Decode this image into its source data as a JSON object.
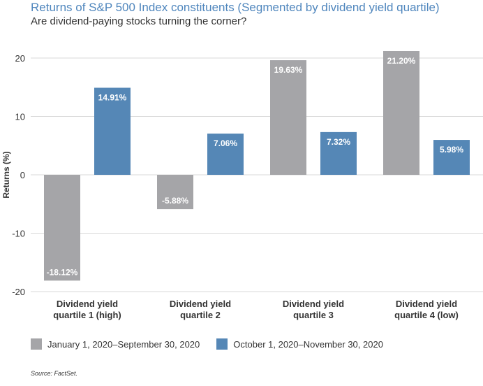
{
  "header": {
    "title": "Returns of S&P 500 Index constituents (Segmented by dividend yield quartile)",
    "subtitle": "Are dividend-paying stocks turning the corner?"
  },
  "source": "Source: FactSet.",
  "chart_data": {
    "type": "bar",
    "ylabel": "Returns (%)",
    "ylim": [
      -20,
      23
    ],
    "yticks": [
      -20,
      -10,
      0,
      10,
      20
    ],
    "grid": true,
    "legend_position": "bottom-left",
    "categories": [
      [
        "Dividend yield",
        "quartile 1 (high)"
      ],
      [
        "Dividend yield",
        "quartile 2"
      ],
      [
        "Dividend yield",
        "quartile 3"
      ],
      [
        "Dividend yield",
        "quartile 4 (low)"
      ]
    ],
    "series": [
      {
        "name": "January 1, 2020–September 30, 2020",
        "color": "#a5a5a8",
        "values": [
          -18.12,
          -5.88,
          19.63,
          21.2
        ],
        "labels": [
          "-18.12%",
          "-5.88%",
          "19.63%",
          "21.20%"
        ]
      },
      {
        "name": "October 1, 2020–November 30, 2020",
        "color": "#5587b6",
        "values": [
          14.91,
          7.06,
          7.32,
          5.98
        ],
        "labels": [
          "14.91%",
          "7.06%",
          "7.32%",
          "5.98%"
        ]
      }
    ]
  }
}
